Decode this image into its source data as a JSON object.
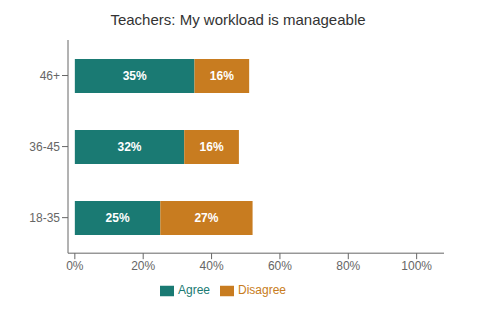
{
  "chart_data": {
    "type": "bar",
    "orientation": "horizontal",
    "stacked": true,
    "title": "Teachers: My workload is manageable",
    "categories": [
      "18-35",
      "36-45",
      "46+"
    ],
    "series": [
      {
        "name": "Agree",
        "color": "#1a7a73",
        "values": [
          25,
          32,
          35
        ],
        "value_labels": [
          "25%",
          "32%",
          "35%"
        ]
      },
      {
        "name": "Disagree",
        "color": "#c87c20",
        "values": [
          27,
          16,
          16
        ],
        "value_labels": [
          "27%",
          "16%",
          "16%"
        ]
      }
    ],
    "xlim": [
      -2,
      108
    ],
    "xticks": [
      {
        "value": 0,
        "label": "0%"
      },
      {
        "value": 20,
        "label": "20%"
      },
      {
        "value": 40,
        "label": "40%"
      },
      {
        "value": 60,
        "label": "60%"
      },
      {
        "value": 80,
        "label": "80%"
      },
      {
        "value": 100,
        "label": "100%"
      }
    ],
    "data_labels": true,
    "legend": "bottom",
    "grid": false
  }
}
